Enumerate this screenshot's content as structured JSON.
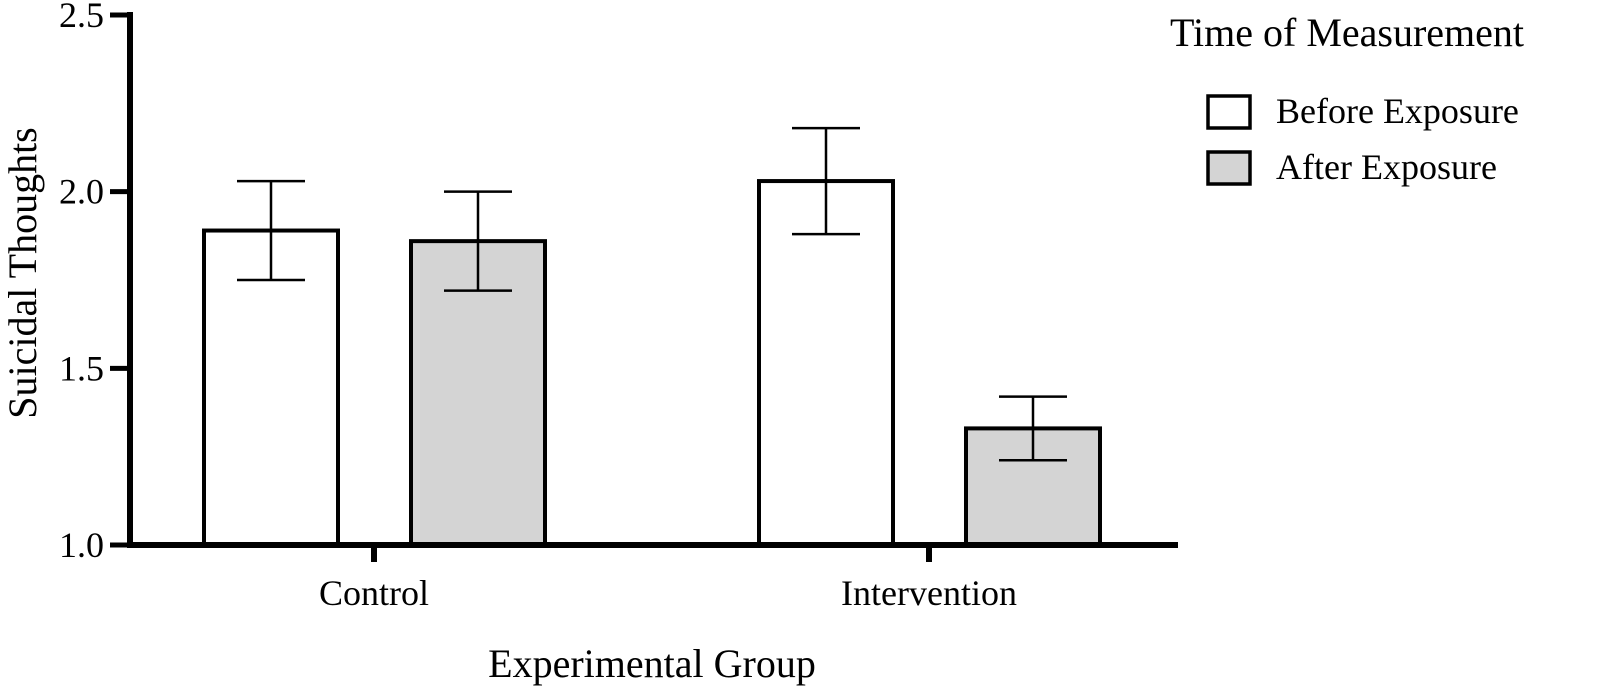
{
  "chart_data": {
    "type": "bar",
    "title": "",
    "xlabel": "Experimental Group",
    "ylabel": "Suicidal Thoughts",
    "categories": [
      "Control",
      "Intervention"
    ],
    "ylim": [
      1.0,
      2.5
    ],
    "yticks": [
      "1.0",
      "1.5",
      "2.0",
      "2.5"
    ],
    "grid": false,
    "legend_title": "Time of Measurement",
    "legend_position": "top-right",
    "series": [
      {
        "name": "Before Exposure",
        "color": "#ffffff",
        "values": [
          1.89,
          2.03
        ],
        "error_low": [
          1.75,
          1.88
        ],
        "error_high": [
          2.03,
          2.18
        ]
      },
      {
        "name": "After Exposure",
        "color": "#d4d4d4",
        "values": [
          1.86,
          1.33
        ],
        "error_low": [
          1.72,
          1.24
        ],
        "error_high": [
          2.0,
          1.42
        ]
      }
    ]
  }
}
